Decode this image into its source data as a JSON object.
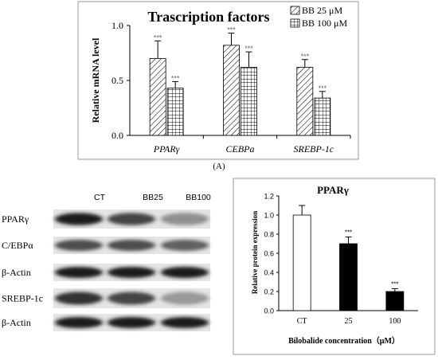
{
  "panel_a_label": "(A)",
  "chart_data": [
    {
      "type": "bar",
      "title": "Trascription factors",
      "ylabel": "Relative mRNA level",
      "xlabel": "",
      "ylim": [
        0,
        1.0
      ],
      "yticks": [
        "0.0",
        "0.5",
        "1.0"
      ],
      "categories": [
        "PPARγ",
        "CEBPa",
        "SREBP-1c"
      ],
      "series": [
        {
          "name": "BB 25 μM",
          "pattern": "diagonal",
          "values": [
            0.7,
            0.82,
            0.62
          ],
          "errors": [
            0.16,
            0.11,
            0.07
          ],
          "sig": [
            "***",
            "***",
            "***"
          ]
        },
        {
          "name": "BB 100 μM",
          "pattern": "grid",
          "values": [
            0.43,
            0.62,
            0.34
          ],
          "errors": [
            0.06,
            0.14,
            0.06
          ],
          "sig": [
            "***",
            "***",
            "***"
          ]
        }
      ],
      "legend": "top-right",
      "grid": false
    },
    {
      "type": "bar",
      "title": "PPARγ",
      "ylabel": "Relative protein expression",
      "xlabel": "Bilobalide concentration（μM）",
      "ylim": [
        0,
        1.2
      ],
      "yticks": [
        "0.0",
        "0.2",
        "0.4",
        "0.6",
        "0.8",
        "1.0",
        "1.2"
      ],
      "categories": [
        "CT",
        "25",
        "100"
      ],
      "values": [
        1.0,
        0.7,
        0.2
      ],
      "errors": [
        0.1,
        0.07,
        0.03
      ],
      "colors": [
        "#ffffff",
        "#000000",
        "#000000"
      ],
      "sig": [
        "",
        "***",
        "***"
      ],
      "grid": false
    }
  ],
  "western_blot": {
    "lanes": [
      "CT",
      "BB25",
      "BB100"
    ],
    "rows": [
      {
        "label": "PPARγ",
        "intensity": [
          0.95,
          0.75,
          0.35
        ]
      },
      {
        "label": "C/EBPα",
        "intensity": [
          0.7,
          0.7,
          0.6
        ]
      },
      {
        "label": "β-Actin",
        "intensity": [
          0.95,
          0.95,
          0.95
        ]
      },
      {
        "label": "SREBP-1c",
        "intensity": [
          0.85,
          0.75,
          0.3
        ]
      },
      {
        "label": "β-Actin",
        "intensity": [
          0.95,
          0.95,
          0.95
        ]
      }
    ]
  }
}
